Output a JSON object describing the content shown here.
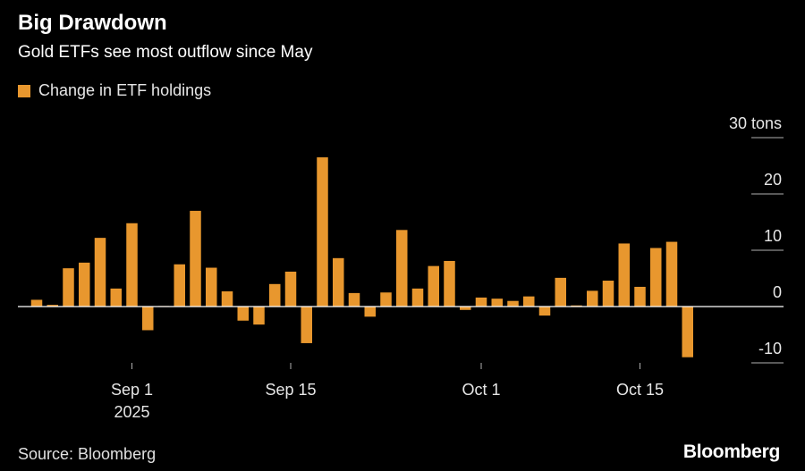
{
  "title": "Big Drawdown",
  "subtitle": "Gold ETFs see most outflow since May",
  "source": "Source: Bloomberg",
  "brand": "Bloomberg",
  "colors": {
    "bar": "#e8972e",
    "background": "#000000",
    "text": "#ffffff",
    "grid": "#b0b0b0"
  },
  "chart_data": {
    "type": "bar",
    "series": [
      {
        "name": "Change in ETF holdings",
        "values": [
          1.2,
          0.3,
          6.8,
          7.8,
          12.2,
          3.2,
          14.8,
          -4.2,
          0.1,
          7.5,
          17.0,
          6.9,
          2.7,
          -2.5,
          -3.2,
          4.0,
          6.2,
          -6.5,
          26.5,
          8.6,
          2.4,
          -1.8,
          2.5,
          13.6,
          3.2,
          7.2,
          8.1,
          -0.6,
          1.6,
          1.4,
          1.0,
          1.8,
          -1.6,
          5.1,
          0.2,
          2.8,
          4.6,
          11.2,
          3.5,
          10.4,
          11.5,
          -9.0
        ]
      }
    ],
    "x_tick_labels": [
      "Sep 1",
      "Sep 15",
      "Oct 1",
      "Oct 15"
    ],
    "x_tick_bar_positions": [
      6.0,
      16.0,
      28.0,
      38.0
    ],
    "x_year_label": "2025",
    "y_ticks": [
      -10,
      0,
      10,
      20,
      30
    ],
    "y_tick_labels": [
      "-10",
      "0",
      "10",
      "20",
      "30 tons"
    ],
    "ylim": [
      -10,
      30
    ],
    "title": "Big Drawdown",
    "xlabel": "",
    "ylabel": "tons",
    "grid": false,
    "legend": "top-left"
  }
}
